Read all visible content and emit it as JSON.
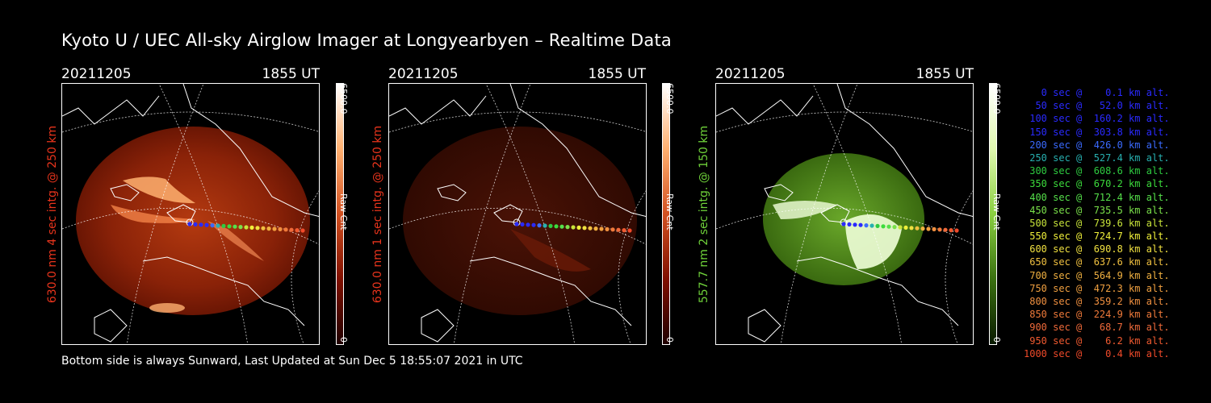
{
  "title": "Kyoto U / UEC All-sky Airglow Imager at Longyearbyen – Realtime Data",
  "footer": "Bottom side is always Sunward, Last Updated at Sun Dec  5 18:55:07 2021 in UTC",
  "colors": {
    "red_label": "#e8341c",
    "green_label": "#6fd23a",
    "background": "#000000"
  },
  "panels": [
    {
      "date": "20211205",
      "time": "1855 UT",
      "side_label": "630.0 nm 4 sec intg. @ 250 km",
      "cbar_max": "6500.0",
      "cbar_unit": "Raw Cnt",
      "cbar_min": "0",
      "theme": "red"
    },
    {
      "date": "20211205",
      "time": "1855 UT",
      "side_label": "630.0 nm 1 sec intg. @ 250 km",
      "cbar_max": "6500.0",
      "cbar_unit": "Raw Cnt",
      "cbar_min": "0",
      "theme": "red-dim"
    },
    {
      "date": "20211205",
      "time": "1855 UT",
      "side_label": "557.7 nm 2 sec intg. @ 150 km",
      "cbar_max": "6500.0",
      "cbar_unit": "Raw Cnt",
      "cbar_min": "0",
      "theme": "green"
    }
  ],
  "legend": [
    {
      "text": "   0 sec @    0.1 km alt.",
      "color": "#2a2aff"
    },
    {
      "text": "  50 sec @   52.0 km alt.",
      "color": "#2a2aff"
    },
    {
      "text": " 100 sec @  160.2 km alt.",
      "color": "#2a2aff"
    },
    {
      "text": " 150 sec @  303.8 km alt.",
      "color": "#2a2aff"
    },
    {
      "text": " 200 sec @  426.0 km alt.",
      "color": "#3a6aff"
    },
    {
      "text": " 250 sec @  527.4 km alt.",
      "color": "#27b0b0"
    },
    {
      "text": " 300 sec @  608.6 km alt.",
      "color": "#2ecc40"
    },
    {
      "text": " 350 sec @  670.2 km alt.",
      "color": "#3cdc3c"
    },
    {
      "text": " 400 sec @  712.4 km alt.",
      "color": "#55e04a"
    },
    {
      "text": " 450 sec @  735.5 km alt.",
      "color": "#7ae04a"
    },
    {
      "text": " 500 sec @  739.6 km alt.",
      "color": "#c8e43a"
    },
    {
      "text": " 550 sec @  724.7 km alt.",
      "color": "#f0f03a"
    },
    {
      "text": " 600 sec @  690.8 km alt.",
      "color": "#f0e040"
    },
    {
      "text": " 650 sec @  637.6 km alt.",
      "color": "#f0c040"
    },
    {
      "text": " 700 sec @  564.9 km alt.",
      "color": "#f0b040"
    },
    {
      "text": " 750 sec @  472.3 km alt.",
      "color": "#f0a040"
    },
    {
      "text": " 800 sec @  359.2 km alt.",
      "color": "#f09040"
    },
    {
      "text": " 850 sec @  224.9 km alt.",
      "color": "#f07a3a"
    },
    {
      "text": " 900 sec @   68.7 km alt.",
      "color": "#f06a3a"
    },
    {
      "text": " 950 sec @    6.2 km alt.",
      "color": "#f05a30"
    },
    {
      "text": "1000 sec @    0.4 km alt.",
      "color": "#f04a2a"
    }
  ]
}
